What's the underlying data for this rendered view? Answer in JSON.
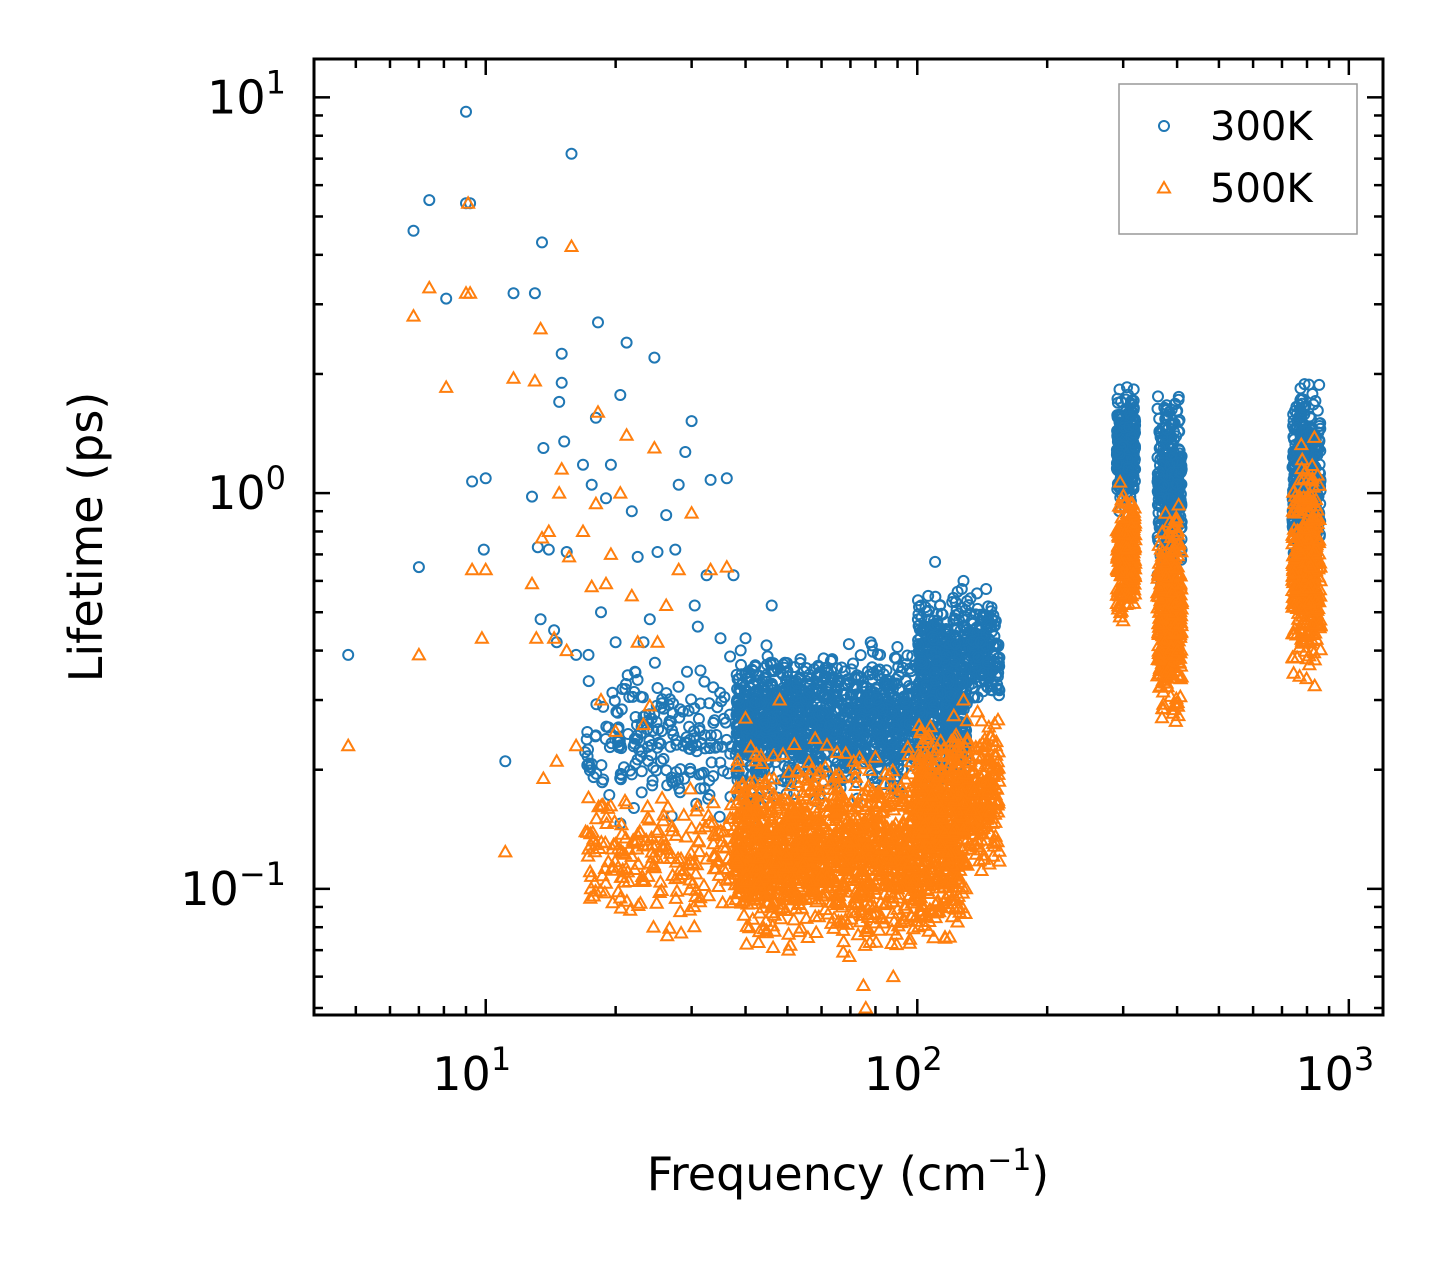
{
  "chart_data": {
    "type": "scatter",
    "title": "",
    "xlabel": "Frequency (cm",
    "xlabel_sup": "−1",
    "xlabel_close": ")",
    "ylabel": "Lifetime (ps)",
    "xscale": "log",
    "yscale": "log",
    "xlim": [
      4,
      1200
    ],
    "ylim": [
      0.048,
      12.5
    ],
    "x_tick_labels": [
      {
        "value": 10,
        "base": "10",
        "exp": "1"
      },
      {
        "value": 100,
        "base": "10",
        "exp": "2"
      },
      {
        "value": 1000,
        "base": "10",
        "exp": "3"
      }
    ],
    "y_tick_labels": [
      {
        "value": 0.1,
        "base": "10",
        "exp": "−1"
      },
      {
        "value": 1,
        "base": "10",
        "exp": "0"
      },
      {
        "value": 10,
        "base": "10",
        "exp": "1"
      }
    ],
    "legend_position": "top-right",
    "series": [
      {
        "name": "300K",
        "marker": "circle",
        "color": "#1f77b4",
        "points": [
          [
            4.8,
            0.39
          ],
          [
            7.0,
            0.65
          ],
          [
            6.8,
            4.6
          ],
          [
            7.4,
            5.5
          ],
          [
            8.1,
            3.1
          ],
          [
            9.0,
            9.2
          ],
          [
            9.0,
            5.4
          ],
          [
            9.2,
            5.4
          ],
          [
            9.3,
            1.07
          ],
          [
            9.9,
            0.72
          ],
          [
            10.0,
            1.09
          ],
          [
            11.1,
            0.21
          ],
          [
            11.6,
            3.2
          ],
          [
            12.8,
            0.98
          ],
          [
            13.0,
            3.2
          ],
          [
            13.2,
            0.73
          ],
          [
            13.4,
            0.48
          ],
          [
            13.5,
            4.3
          ],
          [
            13.6,
            1.3
          ],
          [
            14.0,
            0.72
          ],
          [
            14.4,
            0.45
          ],
          [
            14.6,
            0.42
          ],
          [
            14.8,
            1.7
          ],
          [
            15.0,
            2.25
          ],
          [
            15.2,
            1.35
          ],
          [
            15.0,
            1.9
          ],
          [
            15.4,
            0.71
          ],
          [
            15.8,
            7.2
          ],
          [
            16.2,
            0.39
          ],
          [
            16.8,
            1.18
          ],
          [
            17.3,
            0.39
          ],
          [
            17.6,
            1.05
          ],
          [
            18.0,
            1.55
          ],
          [
            18.2,
            2.7
          ],
          [
            18.5,
            0.5
          ],
          [
            19.0,
            0.97
          ],
          [
            19.5,
            1.18
          ],
          [
            20.0,
            0.42
          ],
          [
            20.5,
            1.77
          ],
          [
            21.2,
            2.4
          ],
          [
            21.8,
            0.9
          ],
          [
            22.5,
            0.69
          ],
          [
            23.2,
            0.42
          ],
          [
            24.0,
            0.48
          ],
          [
            24.6,
            2.2
          ],
          [
            25.0,
            0.71
          ],
          [
            26.2,
            0.88
          ],
          [
            27.5,
            0.72
          ],
          [
            28.0,
            1.05
          ],
          [
            29.0,
            1.27
          ],
          [
            30.0,
            1.52
          ],
          [
            30.5,
            0.52
          ],
          [
            31.0,
            0.46
          ],
          [
            32.5,
            0.62
          ],
          [
            33.2,
            1.08
          ],
          [
            35.0,
            0.43
          ],
          [
            36.2,
            1.09
          ],
          [
            37.5,
            0.62
          ],
          [
            40.0,
            0.43
          ],
          [
            46.0,
            0.52
          ],
          [
            56.0,
            0.31
          ],
          [
            65.0,
            0.28
          ],
          [
            78.0,
            0.42
          ],
          [
            82.0,
            0.39
          ],
          [
            96.0,
            0.36
          ],
          [
            106.0,
            0.55
          ],
          [
            110.0,
            0.67
          ],
          [
            118.0,
            0.33
          ],
          [
            128.0,
            0.6
          ],
          [
            140.0,
            0.42
          ],
          [
            145.0,
            0.47
          ],
          [
            152.0,
            0.37
          ]
        ],
        "clusters": [
          {
            "x": [
              17,
              45
            ],
            "y": [
              0.13,
              0.42
            ],
            "count": 260
          },
          {
            "x": [
              38,
              130
            ],
            "y": [
              0.16,
              0.45
            ],
            "count": 1500
          },
          {
            "x": [
              100,
              155
            ],
            "y": [
              0.26,
              0.6
            ],
            "count": 450
          },
          {
            "x": [
              290,
              320
            ],
            "y": [
              0.85,
              2.0
            ],
            "count": 260
          },
          {
            "x": [
              360,
              410
            ],
            "y": [
              0.55,
              1.95
            ],
            "count": 380
          },
          {
            "x": [
              740,
              860
            ],
            "y": [
              0.6,
              2.1
            ],
            "count": 380
          }
        ]
      },
      {
        "name": "500K",
        "marker": "triangle",
        "color": "#ff7f0e",
        "points": [
          [
            4.8,
            0.23
          ],
          [
            6.8,
            2.8
          ],
          [
            7.0,
            0.39
          ],
          [
            7.4,
            3.3
          ],
          [
            8.1,
            1.85
          ],
          [
            9.0,
            3.2
          ],
          [
            9.1,
            5.4
          ],
          [
            9.2,
            3.2
          ],
          [
            9.3,
            0.64
          ],
          [
            9.8,
            0.43
          ],
          [
            10.0,
            0.64
          ],
          [
            11.1,
            0.124
          ],
          [
            11.6,
            1.95
          ],
          [
            12.8,
            0.59
          ],
          [
            13.0,
            1.92
          ],
          [
            13.1,
            0.43
          ],
          [
            13.4,
            2.6
          ],
          [
            13.5,
            0.77
          ],
          [
            13.6,
            0.19
          ],
          [
            14.0,
            0.8
          ],
          [
            14.4,
            0.43
          ],
          [
            14.6,
            0.21
          ],
          [
            14.8,
            1.0
          ],
          [
            15.0,
            1.15
          ],
          [
            15.4,
            0.4
          ],
          [
            15.6,
            0.69
          ],
          [
            15.8,
            4.2
          ],
          [
            16.2,
            0.23
          ],
          [
            16.8,
            0.8
          ],
          [
            17.3,
            0.17
          ],
          [
            17.6,
            0.58
          ],
          [
            18.0,
            0.94
          ],
          [
            18.2,
            1.6
          ],
          [
            18.5,
            0.3
          ],
          [
            19.0,
            0.59
          ],
          [
            19.5,
            0.7
          ],
          [
            20.0,
            0.25
          ],
          [
            20.5,
            1.0
          ],
          [
            21.2,
            1.4
          ],
          [
            21.8,
            0.55
          ],
          [
            22.5,
            0.42
          ],
          [
            23.2,
            0.26
          ],
          [
            24.0,
            0.29
          ],
          [
            24.6,
            1.3
          ],
          [
            25.0,
            0.42
          ],
          [
            26.2,
            0.52
          ],
          [
            28.0,
            0.64
          ],
          [
            30.0,
            0.89
          ],
          [
            33.2,
            0.64
          ],
          [
            36.2,
            0.65
          ],
          [
            40.0,
            0.27
          ],
          [
            48.0,
            0.3
          ],
          [
            58.0,
            0.24
          ],
          [
            76.0,
            0.05
          ],
          [
            75.0,
            0.057
          ],
          [
            88.0,
            0.06
          ],
          [
            116.0,
            0.075
          ],
          [
            128.0,
            0.3
          ],
          [
            138.0,
            0.28
          ],
          [
            152.0,
            0.23
          ]
        ],
        "clusters": [
          {
            "x": [
              17,
              45
            ],
            "y": [
              0.07,
              0.2
            ],
            "count": 260
          },
          {
            "x": [
              38,
              130
            ],
            "y": [
              0.062,
              0.25
            ],
            "count": 1500
          },
          {
            "x": [
              100,
              155
            ],
            "y": [
              0.1,
              0.3
            ],
            "count": 450
          },
          {
            "x": [
              290,
              320
            ],
            "y": [
              0.44,
              1.1
            ],
            "count": 260
          },
          {
            "x": [
              360,
              410
            ],
            "y": [
              0.23,
              1.05
            ],
            "count": 380
          },
          {
            "x": [
              740,
              860
            ],
            "y": [
              0.29,
              1.45
            ],
            "count": 380
          }
        ]
      }
    ]
  }
}
